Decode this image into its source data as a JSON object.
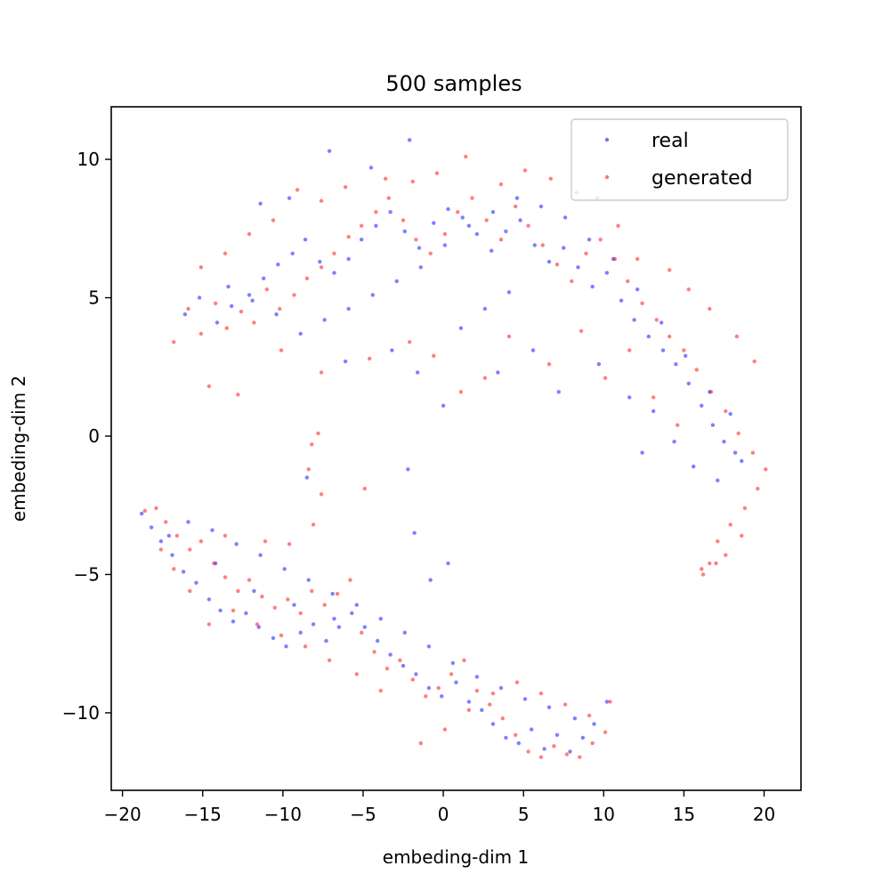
{
  "chart_data": {
    "type": "scatter",
    "title": "500 samples",
    "xlabel": "embeding-dim 1",
    "ylabel": "embeding-dim 2",
    "xlim": [
      -20.7,
      22.3
    ],
    "ylim": [
      -12.8,
      11.9
    ],
    "xticks": [
      -20,
      -15,
      -10,
      -5,
      0,
      5,
      10,
      15,
      20
    ],
    "yticks": [
      -10,
      -5,
      0,
      5,
      10
    ],
    "tick_labels_x": [
      "−20",
      "−15",
      "−10",
      "−5",
      "0",
      "5",
      "10",
      "15",
      "20"
    ],
    "tick_labels_y": [
      "−10",
      "−5",
      "0",
      "5",
      "10"
    ],
    "grid": false,
    "legend_position": "top-right",
    "series": [
      {
        "name": "real",
        "color": "#0000ff",
        "points": [
          [
            -18.8,
            -2.8
          ],
          [
            -18.2,
            -3.3
          ],
          [
            -17.6,
            -3.8
          ],
          [
            -16.9,
            -4.3
          ],
          [
            -16.2,
            -4.9
          ],
          [
            -15.4,
            -5.3
          ],
          [
            -14.6,
            -5.9
          ],
          [
            -13.9,
            -6.3
          ],
          [
            -13.1,
            -6.7
          ],
          [
            -12.3,
            -6.4
          ],
          [
            -11.5,
            -6.9
          ],
          [
            -10.6,
            -7.3
          ],
          [
            -9.8,
            -7.6
          ],
          [
            -8.9,
            -7.1
          ],
          [
            -8.1,
            -6.8
          ],
          [
            -7.3,
            -7.4
          ],
          [
            -6.5,
            -6.9
          ],
          [
            -5.7,
            -6.4
          ],
          [
            -4.9,
            -6.9
          ],
          [
            -4.1,
            -7.4
          ],
          [
            -3.3,
            -7.9
          ],
          [
            -2.5,
            -8.3
          ],
          [
            -1.7,
            -8.6
          ],
          [
            -0.9,
            -9.1
          ],
          [
            -0.1,
            -9.4
          ],
          [
            0.8,
            -8.9
          ],
          [
            1.6,
            -9.6
          ],
          [
            2.4,
            -9.9
          ],
          [
            3.1,
            -10.4
          ],
          [
            3.9,
            -10.9
          ],
          [
            4.7,
            -11.1
          ],
          [
            5.5,
            -10.6
          ],
          [
            6.3,
            -11.3
          ],
          [
            7.1,
            -10.8
          ],
          [
            7.9,
            -11.4
          ],
          [
            8.7,
            -10.9
          ],
          [
            9.4,
            -10.4
          ],
          [
            10.2,
            -9.6
          ],
          [
            8.2,
            -10.2
          ],
          [
            6.6,
            -9.8
          ],
          [
            5.1,
            -9.5
          ],
          [
            3.6,
            -9.1
          ],
          [
            2.1,
            -8.7
          ],
          [
            0.6,
            -8.2
          ],
          [
            -0.9,
            -7.6
          ],
          [
            -2.4,
            -7.1
          ],
          [
            -3.9,
            -6.6
          ],
          [
            -5.4,
            -6.1
          ],
          [
            -6.9,
            -5.7
          ],
          [
            -8.4,
            -5.2
          ],
          [
            -9.9,
            -4.8
          ],
          [
            -11.4,
            -4.3
          ],
          [
            -12.9,
            -3.9
          ],
          [
            -14.4,
            -3.4
          ],
          [
            -15.9,
            -3.1
          ],
          [
            -17.1,
            -3.6
          ],
          [
            -14.2,
            -4.6
          ],
          [
            -11.8,
            -5.6
          ],
          [
            -9.3,
            -6.1
          ],
          [
            -6.8,
            -6.6
          ],
          [
            -2.2,
            -1.2
          ],
          [
            -1.8,
            -3.5
          ],
          [
            -0.8,
            -5.2
          ],
          [
            0.3,
            -4.6
          ],
          [
            -8.5,
            -1.5
          ],
          [
            -16.1,
            4.4
          ],
          [
            -15.2,
            5.0
          ],
          [
            -14.1,
            4.1
          ],
          [
            -13.2,
            4.7
          ],
          [
            -12.1,
            5.1
          ],
          [
            -11.2,
            5.7
          ],
          [
            -10.3,
            6.2
          ],
          [
            -9.4,
            6.6
          ],
          [
            -8.6,
            7.1
          ],
          [
            -7.7,
            6.3
          ],
          [
            -6.8,
            5.9
          ],
          [
            -5.9,
            6.4
          ],
          [
            -5.1,
            7.1
          ],
          [
            -4.2,
            7.6
          ],
          [
            -3.3,
            8.1
          ],
          [
            -2.4,
            7.4
          ],
          [
            -1.5,
            6.8
          ],
          [
            -0.6,
            7.7
          ],
          [
            0.3,
            8.2
          ],
          [
            1.2,
            7.9
          ],
          [
            2.1,
            7.3
          ],
          [
            3.0,
            6.7
          ],
          [
            3.9,
            7.4
          ],
          [
            4.8,
            7.8
          ],
          [
            5.7,
            6.9
          ],
          [
            6.6,
            6.3
          ],
          [
            7.5,
            6.8
          ],
          [
            8.4,
            6.1
          ],
          [
            9.3,
            5.4
          ],
          [
            10.2,
            5.9
          ],
          [
            11.1,
            4.9
          ],
          [
            11.9,
            4.2
          ],
          [
            12.8,
            3.6
          ],
          [
            13.7,
            3.1
          ],
          [
            14.5,
            2.6
          ],
          [
            15.3,
            1.9
          ],
          [
            16.1,
            1.1
          ],
          [
            16.8,
            0.4
          ],
          [
            17.5,
            -0.2
          ],
          [
            18.2,
            -0.6
          ],
          [
            17.9,
            0.8
          ],
          [
            16.6,
            1.6
          ],
          [
            15.1,
            2.9
          ],
          [
            13.6,
            4.1
          ],
          [
            12.1,
            5.3
          ],
          [
            10.6,
            6.4
          ],
          [
            9.1,
            7.1
          ],
          [
            7.6,
            7.9
          ],
          [
            6.1,
            8.3
          ],
          [
            4.6,
            8.6
          ],
          [
            3.1,
            8.1
          ],
          [
            1.6,
            7.6
          ],
          [
            0.1,
            6.9
          ],
          [
            -1.4,
            6.1
          ],
          [
            -2.9,
            5.6
          ],
          [
            -4.4,
            5.1
          ],
          [
            -5.9,
            4.6
          ],
          [
            -7.4,
            4.2
          ],
          [
            -8.9,
            3.7
          ],
          [
            -10.4,
            4.4
          ],
          [
            -11.9,
            4.9
          ],
          [
            -13.4,
            5.4
          ],
          [
            -7.1,
            10.3
          ],
          [
            -2.1,
            10.7
          ],
          [
            -4.5,
            9.7
          ],
          [
            -9.6,
            8.6
          ],
          [
            -11.4,
            8.4
          ],
          [
            1.1,
            3.9
          ],
          [
            3.4,
            2.3
          ],
          [
            5.6,
            3.1
          ],
          [
            7.2,
            1.6
          ],
          [
            9.7,
            2.6
          ],
          [
            11.6,
            1.4
          ],
          [
            13.1,
            0.9
          ],
          [
            14.4,
            -0.2
          ],
          [
            12.4,
            -0.6
          ],
          [
            15.6,
            -1.1
          ],
          [
            17.1,
            -1.6
          ],
          [
            18.6,
            -0.9
          ],
          [
            0.0,
            1.1
          ],
          [
            -1.6,
            2.3
          ],
          [
            -3.2,
            3.1
          ],
          [
            -6.1,
            2.7
          ],
          [
            2.6,
            4.6
          ],
          [
            4.1,
            5.2
          ]
        ]
      },
      {
        "name": "generated",
        "color": "#ff0000",
        "points": [
          [
            -18.6,
            -2.7
          ],
          [
            -17.9,
            -2.6
          ],
          [
            -17.3,
            -3.1
          ],
          [
            -16.6,
            -3.6
          ],
          [
            -15.8,
            -4.1
          ],
          [
            -15.1,
            -3.8
          ],
          [
            -14.3,
            -4.6
          ],
          [
            -13.6,
            -5.1
          ],
          [
            -12.8,
            -5.6
          ],
          [
            -12.1,
            -5.2
          ],
          [
            -11.3,
            -5.8
          ],
          [
            -10.5,
            -6.2
          ],
          [
            -9.7,
            -5.9
          ],
          [
            -8.9,
            -6.4
          ],
          [
            -8.2,
            -5.6
          ],
          [
            -7.4,
            -6.1
          ],
          [
            -6.6,
            -5.7
          ],
          [
            -5.8,
            -5.2
          ],
          [
            -5.1,
            -7.1
          ],
          [
            -4.3,
            -7.8
          ],
          [
            -3.5,
            -8.4
          ],
          [
            -2.7,
            -8.1
          ],
          [
            -1.9,
            -8.8
          ],
          [
            -1.1,
            -9.4
          ],
          [
            -0.3,
            -9.1
          ],
          [
            0.5,
            -8.6
          ],
          [
            1.3,
            -8.1
          ],
          [
            2.1,
            -9.2
          ],
          [
            2.9,
            -9.7
          ],
          [
            3.7,
            -10.2
          ],
          [
            4.5,
            -10.8
          ],
          [
            5.3,
            -11.4
          ],
          [
            6.1,
            -11.6
          ],
          [
            6.9,
            -11.2
          ],
          [
            7.7,
            -11.5
          ],
          [
            8.5,
            -11.6
          ],
          [
            9.3,
            -11.1
          ],
          [
            10.1,
            -10.7
          ],
          [
            10.4,
            -9.6
          ],
          [
            9.1,
            -10.1
          ],
          [
            7.6,
            -9.7
          ],
          [
            6.1,
            -9.3
          ],
          [
            4.6,
            -8.9
          ],
          [
            3.1,
            -9.3
          ],
          [
            1.6,
            -9.9
          ],
          [
            0.1,
            -10.6
          ],
          [
            -1.4,
            -11.1
          ],
          [
            -3.9,
            -9.2
          ],
          [
            -5.4,
            -8.6
          ],
          [
            -7.1,
            -8.1
          ],
          [
            -8.6,
            -7.6
          ],
          [
            -10.1,
            -7.2
          ],
          [
            -11.6,
            -6.8
          ],
          [
            -13.1,
            -6.3
          ],
          [
            -14.6,
            -6.8
          ],
          [
            -15.8,
            -5.6
          ],
          [
            -16.8,
            -4.8
          ],
          [
            -17.6,
            -4.1
          ],
          [
            -13.6,
            -3.6
          ],
          [
            -11.1,
            -3.8
          ],
          [
            -8.1,
            -3.2
          ],
          [
            -7.6,
            -2.1
          ],
          [
            -8.4,
            -1.2
          ],
          [
            -7.8,
            0.1
          ],
          [
            -8.2,
            -0.3
          ],
          [
            -9.6,
            -3.9
          ],
          [
            -4.9,
            -1.9
          ],
          [
            -16.8,
            3.4
          ],
          [
            -15.9,
            4.6
          ],
          [
            -15.1,
            3.7
          ],
          [
            -14.2,
            4.8
          ],
          [
            -13.5,
            3.9
          ],
          [
            -12.6,
            4.5
          ],
          [
            -11.8,
            4.1
          ],
          [
            -11.0,
            5.3
          ],
          [
            -10.2,
            4.6
          ],
          [
            -9.3,
            5.1
          ],
          [
            -8.5,
            5.7
          ],
          [
            -7.6,
            6.1
          ],
          [
            -6.8,
            6.6
          ],
          [
            -5.9,
            7.2
          ],
          [
            -5.1,
            7.6
          ],
          [
            -4.2,
            8.1
          ],
          [
            -3.4,
            8.6
          ],
          [
            -2.5,
            7.8
          ],
          [
            -1.7,
            7.1
          ],
          [
            -0.8,
            6.6
          ],
          [
            0.1,
            7.3
          ],
          [
            0.9,
            8.1
          ],
          [
            1.8,
            8.6
          ],
          [
            2.7,
            7.8
          ],
          [
            3.6,
            7.1
          ],
          [
            4.5,
            8.3
          ],
          [
            5.3,
            7.6
          ],
          [
            6.2,
            6.9
          ],
          [
            7.1,
            6.2
          ],
          [
            8.0,
            5.6
          ],
          [
            8.9,
            6.6
          ],
          [
            9.8,
            7.1
          ],
          [
            10.7,
            6.4
          ],
          [
            11.5,
            5.6
          ],
          [
            12.4,
            4.8
          ],
          [
            13.3,
            4.2
          ],
          [
            14.1,
            3.6
          ],
          [
            15.0,
            3.1
          ],
          [
            15.8,
            2.4
          ],
          [
            16.7,
            1.6
          ],
          [
            17.6,
            0.9
          ],
          [
            18.4,
            0.1
          ],
          [
            19.3,
            -0.6
          ],
          [
            20.1,
            -1.2
          ],
          [
            19.6,
            -1.9
          ],
          [
            18.8,
            -2.6
          ],
          [
            17.9,
            -3.2
          ],
          [
            17.1,
            -3.8
          ],
          [
            17.6,
            -4.3
          ],
          [
            17.0,
            -4.6
          ],
          [
            16.1,
            -4.8
          ],
          [
            16.6,
            -4.6
          ],
          [
            16.2,
            -5.0
          ],
          [
            18.6,
            -3.6
          ],
          [
            19.4,
            2.7
          ],
          [
            18.3,
            3.6
          ],
          [
            16.6,
            4.6
          ],
          [
            15.3,
            5.3
          ],
          [
            14.1,
            6.0
          ],
          [
            12.1,
            6.4
          ],
          [
            10.9,
            7.6
          ],
          [
            9.6,
            8.6
          ],
          [
            8.3,
            8.8
          ],
          [
            6.7,
            9.3
          ],
          [
            5.1,
            9.6
          ],
          [
            3.6,
            9.1
          ],
          [
            1.4,
            10.1
          ],
          [
            -0.4,
            9.5
          ],
          [
            -1.9,
            9.2
          ],
          [
            -3.6,
            9.3
          ],
          [
            -6.1,
            9.0
          ],
          [
            -7.6,
            8.5
          ],
          [
            -9.1,
            8.9
          ],
          [
            -10.6,
            7.8
          ],
          [
            -12.1,
            7.3
          ],
          [
            -13.6,
            6.6
          ],
          [
            -15.1,
            6.1
          ],
          [
            -14.6,
            1.8
          ],
          [
            -12.8,
            1.5
          ],
          [
            -10.1,
            3.1
          ],
          [
            -7.6,
            2.3
          ],
          [
            -4.6,
            2.8
          ],
          [
            -2.1,
            3.4
          ],
          [
            -0.6,
            2.9
          ],
          [
            1.1,
            1.6
          ],
          [
            2.6,
            2.1
          ],
          [
            4.1,
            3.6
          ],
          [
            6.6,
            2.6
          ],
          [
            8.6,
            3.8
          ],
          [
            10.1,
            2.1
          ],
          [
            11.6,
            3.1
          ],
          [
            13.1,
            1.4
          ],
          [
            14.6,
            0.4
          ]
        ]
      }
    ]
  }
}
